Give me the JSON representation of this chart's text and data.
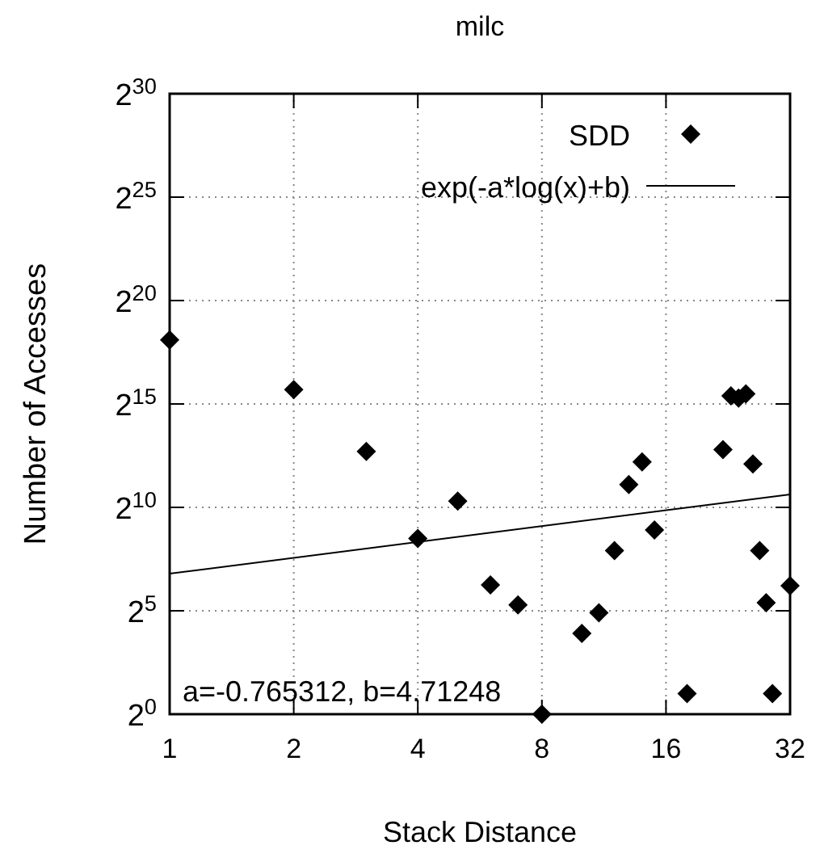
{
  "chart_data": {
    "type": "scatter",
    "title": "milc",
    "xlabel": "Stack Distance",
    "ylabel": "Number of Accesses",
    "log": "xy",
    "grid": true,
    "legend": "top right",
    "xlim": [
      1,
      32
    ],
    "xticks": [
      1,
      2,
      4,
      8,
      16,
      32
    ],
    "ylim": [
      1,
      1073741824
    ],
    "yticks": [
      {
        "value": 1,
        "label": "2$^{0}$"
      },
      {
        "value": 32,
        "label": "2$^{5}$"
      },
      {
        "value": 1024,
        "label": "2$^{10}$"
      },
      {
        "value": 32768,
        "label": "2$^{15}$"
      },
      {
        "value": 1048576,
        "label": "2$^{20}$"
      },
      {
        "value": 33554432,
        "label": "2$^{25}$"
      },
      {
        "value": 1073741824,
        "label": "2$^{30}$"
      }
    ],
    "series": [
      {
        "name": "SDD",
        "marker": "diamond",
        "color": "#000000",
        "x": [
          1,
          2,
          3,
          4,
          5,
          6,
          7,
          8,
          10,
          11,
          12,
          13,
          14,
          15,
          18,
          22,
          23,
          24,
          25,
          26,
          27,
          28,
          29,
          32
        ],
        "values": [
          280000,
          53000,
          6700,
          362,
          1260,
          76,
          39,
          1,
          15,
          30,
          240,
          2200,
          4700,
          480,
          2,
          7100,
          43000,
          40000,
          46000,
          4400,
          240,
          42,
          2,
          74
        ]
      },
      {
        "name": "exp(-a*log(x)+b)",
        "type": "line",
        "color": "#000000",
        "line_style": "solid",
        "marker": "none",
        "x": [
          1,
          32
        ],
        "values": [
          111,
          1580
        ]
      }
    ],
    "annotations": [
      "a=-0.765312, b=4.71248"
    ]
  }
}
